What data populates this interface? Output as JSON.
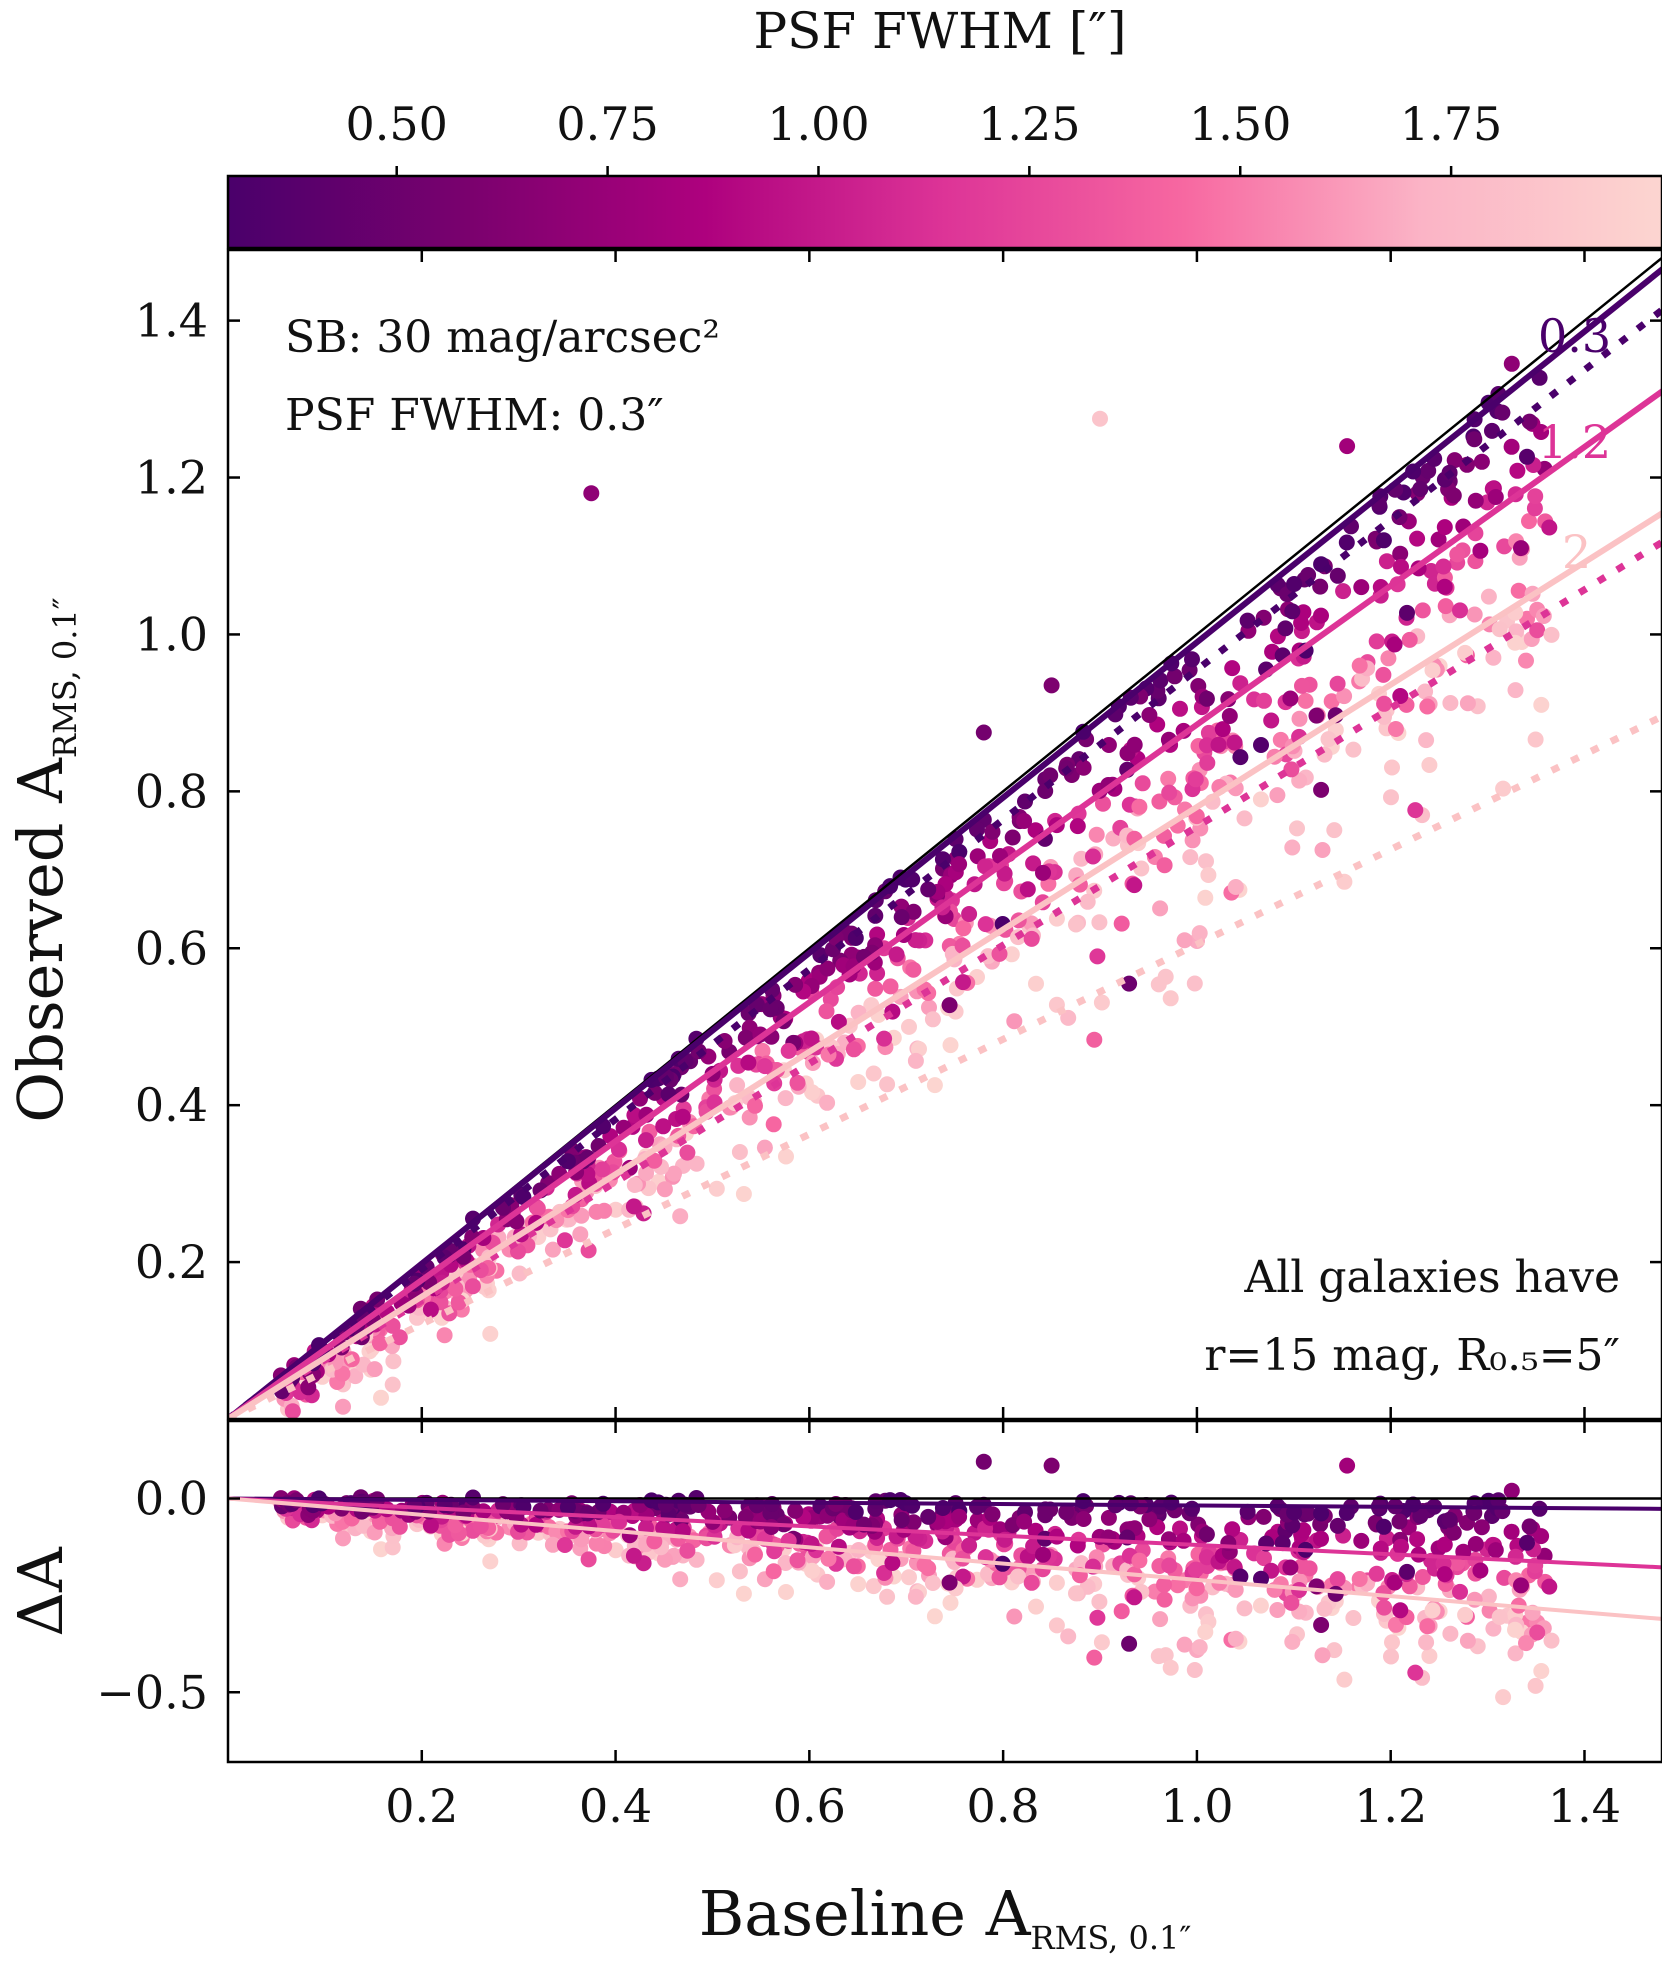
{
  "chart_data": {
    "type": "scatter",
    "colorbar": {
      "title": "PSF FWHM [″]",
      "ticks": [
        "0.50",
        "0.75",
        "1.00",
        "1.25",
        "1.50",
        "1.75"
      ],
      "tick_values": [
        0.5,
        0.75,
        1.0,
        1.25,
        1.5,
        1.75
      ],
      "range": [
        0.3,
        2.0
      ],
      "colors": [
        "#4a006b",
        "#7a016e",
        "#ae017e",
        "#dd3497",
        "#f768a1",
        "#fbb4c6",
        "#fcd5d0"
      ]
    },
    "top_panel": {
      "ylabel_main": "Observed A",
      "ylabel_sub": "RMS, 0.1″",
      "yticks": [
        "0.2",
        "0.4",
        "0.6",
        "0.8",
        "1.0",
        "1.2",
        "1.4"
      ],
      "ytick_values": [
        0.2,
        0.4,
        0.6,
        0.8,
        1.0,
        1.2,
        1.4
      ],
      "xlim": [
        0.0,
        1.48
      ],
      "ylim": [
        0.0,
        1.49
      ],
      "annotation_top": [
        "SB: 30 mag/arcsec²",
        "PSF FWHM: 0.3″"
      ],
      "annotation_bottom": [
        "All galaxies have",
        "r=15 mag, R₀.₅=5″"
      ],
      "one_to_one": true,
      "fit_lines": [
        {
          "name": "0.3",
          "color": "#4a006b",
          "slope": 0.99,
          "style": "solid"
        },
        {
          "name": "0.3 (dotted)",
          "color": "#4a006b",
          "slope": 0.955,
          "style": "dotted"
        },
        {
          "name": "1.2",
          "color": "#dd3497",
          "slope": 0.885,
          "style": "solid"
        },
        {
          "name": "1.2 (dotted)",
          "color": "#dd3497",
          "slope": 0.755,
          "style": "dotted"
        },
        {
          "name": "2",
          "color": "#fbc2c4",
          "slope": 0.78,
          "style": "solid"
        },
        {
          "name": "2 (dotted)",
          "color": "#fbc2c4",
          "slope": 0.605,
          "style": "dotted"
        }
      ],
      "line_labels": [
        "0.3",
        "1.2",
        "2"
      ]
    },
    "bottom_panel": {
      "ylabel": "ΔA",
      "yticks": [
        "0.0",
        "−0.5"
      ],
      "ytick_values": [
        0.0,
        -0.5
      ],
      "ylim": [
        -0.68,
        0.2
      ],
      "fit_lines": [
        {
          "name": "0.3",
          "color": "#4a006b",
          "slope": -0.018
        },
        {
          "name": "1.2",
          "color": "#dd3497",
          "slope": -0.12
        },
        {
          "name": "2",
          "color": "#fbc2c4",
          "slope": -0.21
        }
      ]
    },
    "xlabel_main": "Baseline A",
    "xlabel_sub": "RMS, 0.1″",
    "xticks": [
      "0.2",
      "0.4",
      "0.6",
      "0.8",
      "1.0",
      "1.2",
      "1.4"
    ],
    "xtick_values": [
      0.2,
      0.4,
      0.6,
      0.8,
      1.0,
      1.2,
      1.4
    ],
    "points": {
      "count": 900,
      "x_range": [
        0.05,
        1.37
      ],
      "psf_range": [
        0.3,
        2.0
      ],
      "note": "Baseline values spread uniformly; observed value ~ baseline * slope(psf) with scatter",
      "outliers": [
        {
          "x": 0.375,
          "y": 1.18,
          "psf": 0.7
        },
        {
          "x": 1.155,
          "y": 1.24,
          "psf": 0.8
        },
        {
          "x": 0.9,
          "y": 1.275,
          "psf": 1.85
        },
        {
          "x": 0.78,
          "y": 0.875,
          "psf": 0.55
        },
        {
          "x": 0.85,
          "y": 0.935,
          "psf": 0.6
        },
        {
          "x": 1.325,
          "y": 1.345,
          "psf": 0.7
        },
        {
          "x": 0.93,
          "y": 0.555,
          "psf": 0.5
        }
      ]
    }
  }
}
